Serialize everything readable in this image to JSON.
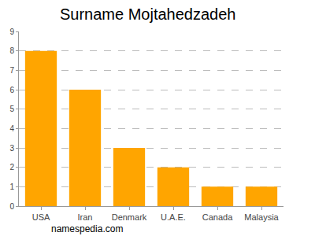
{
  "chart_data": {
    "type": "bar",
    "title": "Surname Mojtahedzadeh",
    "categories": [
      "USA",
      "Iran",
      "Denmark",
      "U.A.E.",
      "Canada",
      "Malaysia"
    ],
    "values": [
      8,
      6,
      3,
      2,
      1,
      1
    ],
    "color": "#ffa500",
    "ylim": [
      0,
      9
    ],
    "yticks": [
      0,
      1,
      2,
      3,
      4,
      5,
      6,
      7,
      8,
      9
    ],
    "grid": true,
    "annotations": [
      "namespedia.com"
    ]
  }
}
